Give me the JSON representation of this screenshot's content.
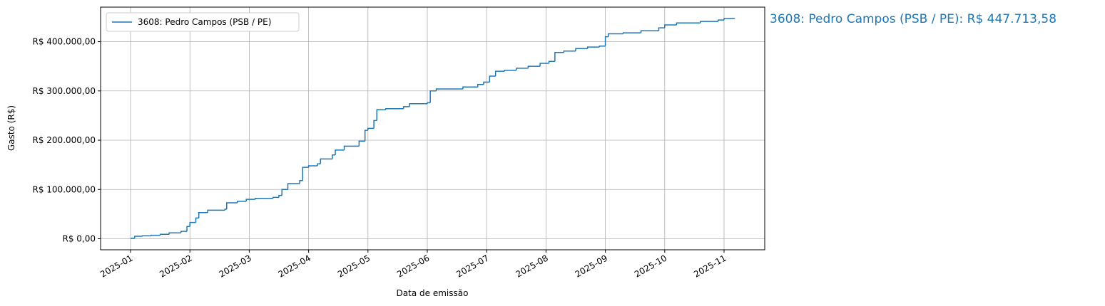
{
  "chart_data": {
    "type": "step",
    "xlabel": "Data de emissão",
    "ylabel": "Gasto (R$)",
    "annotation": "3608: Pedro Campos (PSB / PE): R$ 447.713,58",
    "legend": "upper left",
    "grid": true,
    "xlim": [
      0.495,
      11.685
    ],
    "xticks": [
      {
        "value": 1,
        "label": "2025-01"
      },
      {
        "value": 2,
        "label": "2025-02"
      },
      {
        "value": 3,
        "label": "2025-03"
      },
      {
        "value": 4,
        "label": "2025-04"
      },
      {
        "value": 5,
        "label": "2025-05"
      },
      {
        "value": 6,
        "label": "2025-06"
      },
      {
        "value": 7,
        "label": "2025-07"
      },
      {
        "value": 8,
        "label": "2025-08"
      },
      {
        "value": 9,
        "label": "2025-09"
      },
      {
        "value": 10,
        "label": "2025-10"
      },
      {
        "value": 11,
        "label": "2025-11"
      }
    ],
    "ylim": [
      -22385.68,
      470099.26
    ],
    "yticks": [
      {
        "value": 0,
        "label": "R$ 0,00"
      },
      {
        "value": 100000,
        "label": "R$ 100.000,00"
      },
      {
        "value": 200000,
        "label": "R$ 200.000,00"
      },
      {
        "value": 300000,
        "label": "R$ 300.000,00"
      },
      {
        "value": 400000,
        "label": "R$ 400.000,00"
      }
    ],
    "x": [
      1.0,
      1.07,
      1.2,
      1.35,
      1.5,
      1.65,
      1.85,
      1.95,
      2.0,
      2.1,
      2.15,
      2.3,
      2.59,
      2.62,
      2.8,
      2.95,
      3.1,
      3.4,
      3.5,
      3.55,
      3.65,
      3.85,
      3.9,
      4.0,
      4.15,
      4.2,
      4.4,
      4.45,
      4.6,
      4.85,
      4.95,
      5.0,
      5.1,
      5.15,
      5.3,
      5.6,
      5.7,
      6.0,
      6.05,
      6.15,
      6.6,
      6.85,
      6.95,
      7.05,
      7.15,
      7.3,
      7.5,
      7.7,
      7.9,
      8.05,
      8.15,
      8.3,
      8.5,
      8.7,
      8.9,
      9.0,
      9.05,
      9.3,
      9.6,
      9.9,
      10.0,
      10.2,
      10.6,
      10.9,
      11.0,
      11.18
    ],
    "series": [
      {
        "name": "3608: Pedro Campos (PSB / PE)",
        "color": "#1f77b4",
        "values": [
          1000,
          5000,
          6000,
          7000,
          9000,
          12000,
          15000,
          25000,
          33000,
          42000,
          53000,
          58000,
          60000,
          73000,
          76000,
          80000,
          82000,
          84000,
          88000,
          100000,
          112000,
          118000,
          145000,
          148000,
          152000,
          162000,
          170000,
          180000,
          188000,
          198000,
          220000,
          224000,
          240000,
          262000,
          264000,
          268000,
          274000,
          276000,
          300000,
          304000,
          308000,
          313000,
          318000,
          330000,
          340000,
          342000,
          346000,
          350000,
          356000,
          360000,
          378000,
          381000,
          386000,
          389000,
          391000,
          410000,
          416000,
          418000,
          422000,
          428000,
          434000,
          438000,
          441000,
          444000,
          447000,
          447713.58
        ]
      }
    ]
  }
}
